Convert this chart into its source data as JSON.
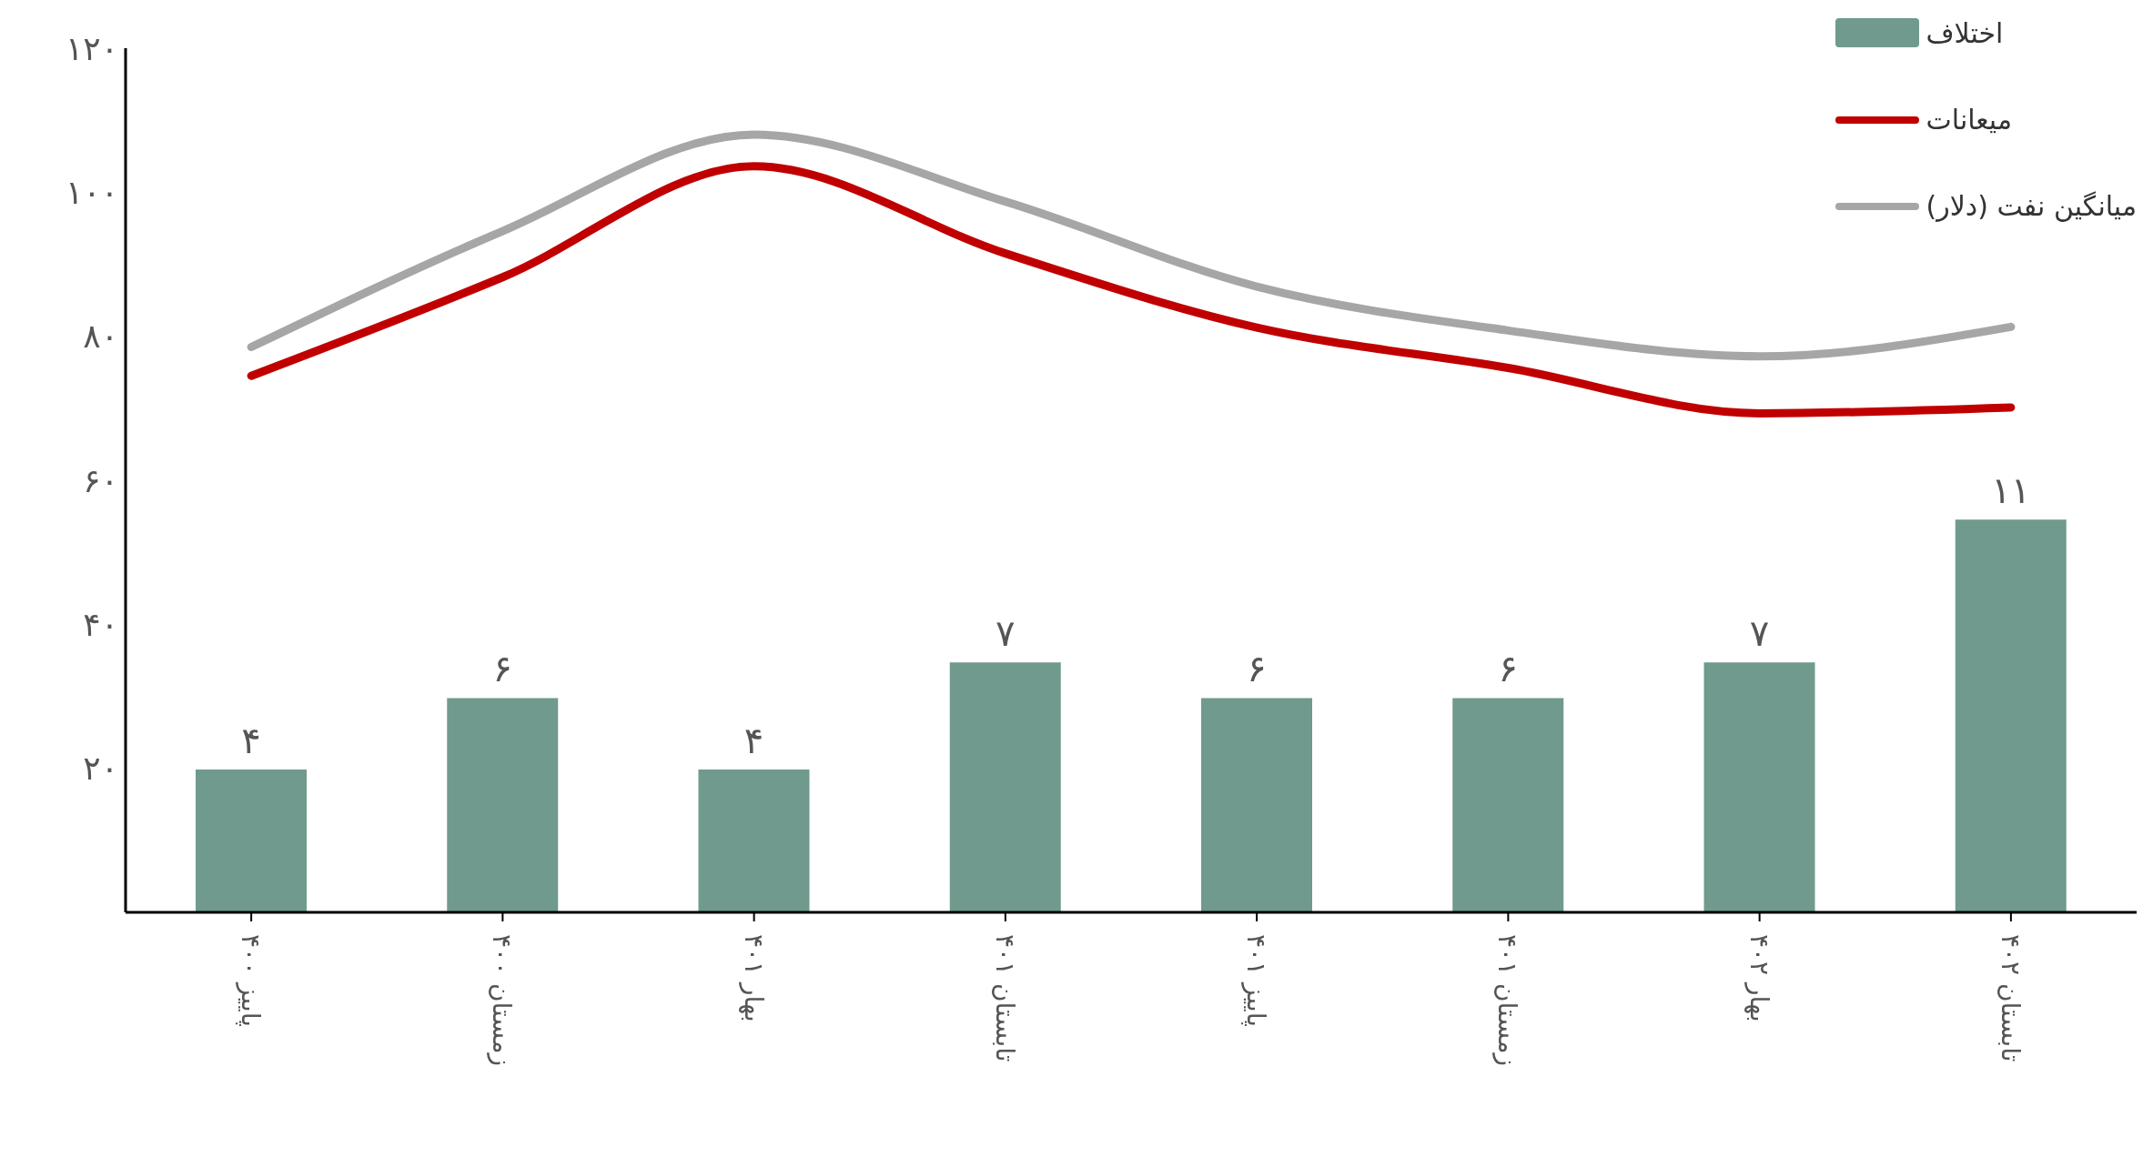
{
  "chart_data": {
    "type": "bar",
    "categories": [
      "پاییز ۴۰۰",
      "زمستان ۴۰۰",
      "بهار ۴۰۱",
      "تابستان ۴۰۱",
      "پاییز ۴۰۱",
      "زمستان ۴۰۱",
      "بهار ۴۰۲",
      "تابستان ۴۰۲"
    ],
    "series": [
      {
        "name": "اختلاف",
        "axis": "y2",
        "color": "#6f9a8d",
        "values": [
          4,
          6,
          4,
          7,
          6,
          6,
          7,
          11
        ],
        "value_labels": [
          "۴",
          "۶",
          "۴",
          "۷",
          "۶",
          "۶",
          "۷",
          "۱۱"
        ]
      },
      {
        "name": "میعانات",
        "type": "line",
        "color": "#c00000",
        "values": [
          74.5,
          88.2,
          103.6,
          91.5,
          81.2,
          75.6,
          69.3,
          70.1
        ]
      },
      {
        "name": "میانگین نفت (دلار)",
        "type": "line",
        "color": "#a6a6a6",
        "values": [
          78.5,
          94.6,
          108,
          98.7,
          86.9,
          80.8,
          77.2,
          81.3
        ]
      }
    ],
    "ylim": [
      0,
      120
    ],
    "yticks": [
      {
        "value": 20,
        "label": "۲۰"
      },
      {
        "value": 40,
        "label": "۴۰"
      },
      {
        "value": 60,
        "label": "۶۰"
      },
      {
        "value": 80,
        "label": "۸۰"
      },
      {
        "value": 100,
        "label": "۱۰۰"
      },
      {
        "value": 120,
        "label": "۱۲۰"
      }
    ],
    "legend": "top right",
    "grid": false,
    "marker": "none",
    "line_style": "solid"
  }
}
